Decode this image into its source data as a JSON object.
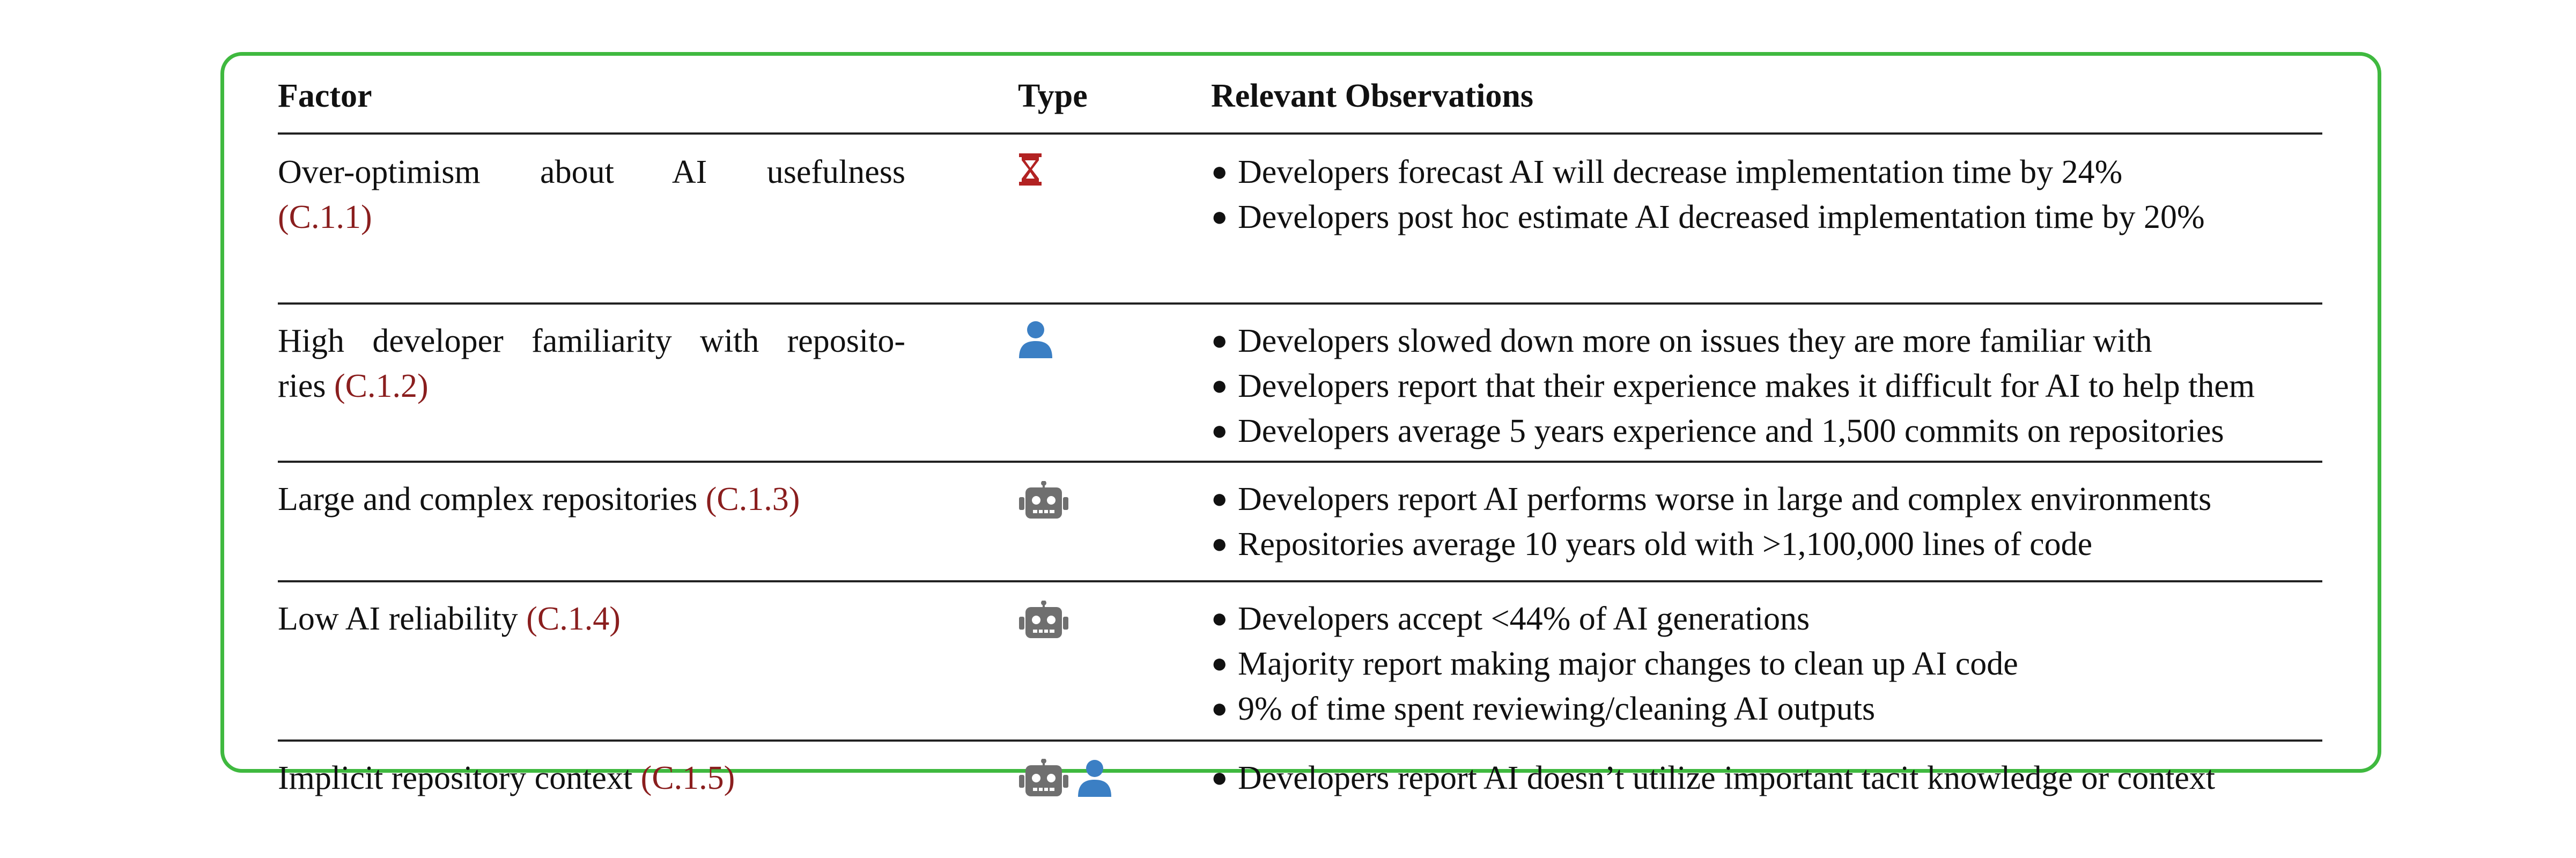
{
  "table": {
    "headers": {
      "factor": "Factor",
      "type": "Type",
      "observations": "Relevant Observations"
    },
    "rows": [
      {
        "factor_line1": "Over-optimism about AI usefulness",
        "factor_line2": "",
        "ref": "(C.1.1)",
        "type_icons": [
          "hourglass-icon"
        ],
        "observations": [
          "Developers forecast AI will decrease implementation time by 24%",
          "Developers post hoc estimate AI decreased implementation time by 20%"
        ]
      },
      {
        "factor_line1": "High developer familiarity with reposito-",
        "factor_line2": "ries",
        "ref": "(C.1.2)",
        "type_icons": [
          "person-icon"
        ],
        "observations": [
          "Developers slowed down more on issues they are more familiar with",
          "Developers report that their experience makes it difficult for AI to help them",
          "Developers average 5 years experience and 1,500 commits on repositories"
        ]
      },
      {
        "factor_line1": "Large and complex repositories",
        "factor_line2": "",
        "ref": "(C.1.3)",
        "type_icons": [
          "robot-icon"
        ],
        "observations": [
          "Developers report AI performs worse in large and complex environments",
          "Repositories average 10 years old with >1,100,000 lines of code"
        ]
      },
      {
        "factor_line1": "Low AI reliability",
        "factor_line2": "",
        "ref": "(C.1.4)",
        "type_icons": [
          "robot-icon"
        ],
        "observations": [
          "Developers accept <44% of AI generations",
          "Majority report making major changes to clean up AI code",
          "9% of time spent reviewing/cleaning AI outputs"
        ]
      },
      {
        "factor_line1": "Implicit repository context",
        "factor_line2": "",
        "ref": "(C.1.5)",
        "type_icons": [
          "robot-icon",
          "person-icon"
        ],
        "observations": [
          "Developers report AI doesn’t utilize important tacit knowledge or context"
        ]
      }
    ]
  },
  "colors": {
    "frame": "#3fb93f",
    "ref_link": "#8a1e1e",
    "hourglass": "#b22222",
    "person": "#3b7fc4",
    "robot": "#6f6f6f"
  }
}
